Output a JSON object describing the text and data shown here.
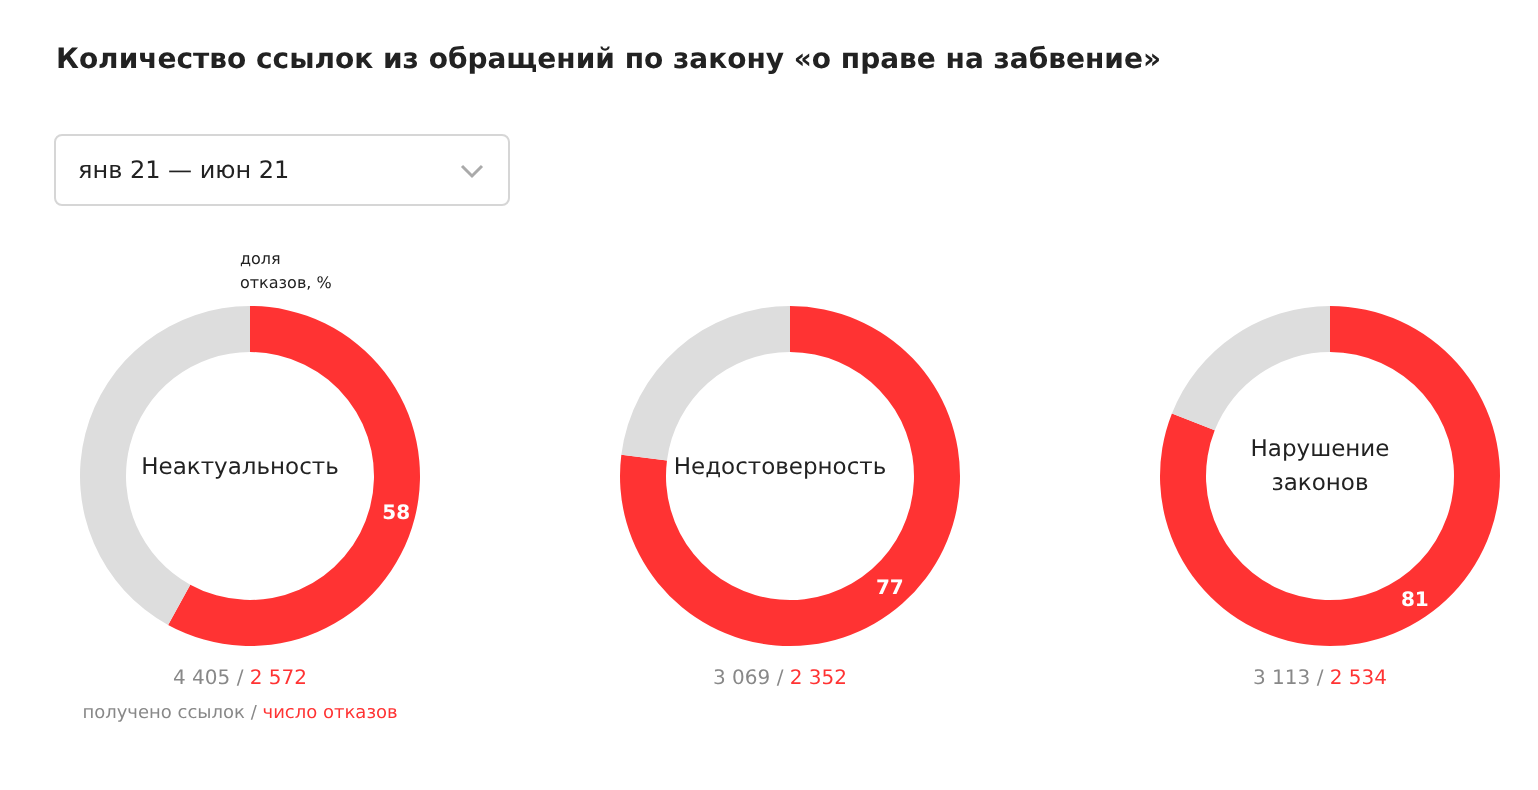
{
  "chart_data": [
    {
      "type": "donut",
      "title": "Неактуальность",
      "categories": [
        null,
        null
      ],
      "values": [
        58,
        42
      ],
      "colors": [
        "#ff3333",
        "#dddddd"
      ],
      "value_labels": [
        "58",
        null
      ],
      "annotations": [
        "Количество ссылок из обращений по закону «о праве на забвение»",
        "янв 21 — июн 21",
        "доля отказов, %",
        "4 405",
        "/",
        "2 572",
        "получено ссылок",
        "/",
        "число отказов"
      ]
    },
    {
      "type": "donut",
      "title": "Недостоверность",
      "categories": [
        null,
        null
      ],
      "values": [
        77,
        23
      ],
      "colors": [
        "#ff3333",
        "#dddddd"
      ],
      "value_labels": [
        "77",
        null
      ],
      "annotations": [
        "3 069",
        "/",
        "2 352"
      ]
    },
    {
      "type": "donut",
      "title": "Нарушение законов",
      "categories": [
        null,
        null
      ],
      "values": [
        81,
        19
      ],
      "colors": [
        "#ff3333",
        "#dddddd"
      ],
      "value_labels": [
        "81",
        null
      ],
      "annotations": [
        "3 113",
        "/",
        "2 534"
      ]
    }
  ]
}
